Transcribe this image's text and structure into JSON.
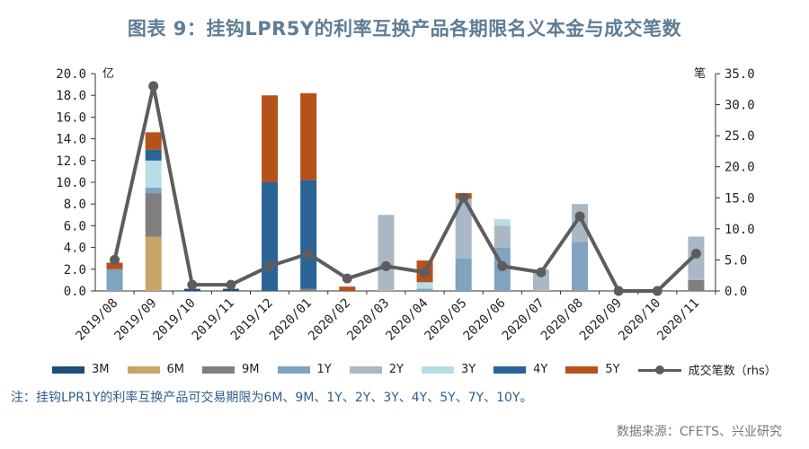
{
  "title": "图表 9：挂钩LPR5Y的利率互换产品各期限名义本金与成交笔数",
  "note": "注：挂钩LPR1Y的利率互换产品可交易期限为6M、9M、1Y、2Y、3Y、4Y、5Y、7Y、10Y。",
  "source": "数据来源：CFETS、兴业研究",
  "colors": {
    "3M": "#1f4e79",
    "6M": "#c9a46b",
    "9M": "#7f7f7f",
    "1Y": "#7fa3c0",
    "2Y": "#a9b8c4",
    "3Y": "#b7dde6",
    "4Y": "#2a6496",
    "5Y": "#b5521b",
    "line": "#5d5d5d"
  },
  "chart_data": {
    "type": "bar",
    "title": "图表 9：挂钩LPR5Y的利率互换产品各期限名义本金与成交笔数",
    "left_axis_unit": "亿",
    "right_axis_unit": "笔",
    "ylim": [
      0,
      20
    ],
    "y2lim": [
      0,
      35
    ],
    "yticks": [
      "0.0",
      "2.0",
      "4.0",
      "6.0",
      "8.0",
      "10.0",
      "12.0",
      "14.0",
      "16.0",
      "18.0",
      "20.0"
    ],
    "y2ticks": [
      "0.0",
      "5.0",
      "10.0",
      "15.0",
      "20.0",
      "25.0",
      "30.0",
      "35.0"
    ],
    "categories": [
      "2019/08",
      "2019/09",
      "2019/10",
      "2019/11",
      "2019/12",
      "2020/01",
      "2020/02",
      "2020/03",
      "2020/04",
      "2020/05",
      "2020/06",
      "2020/07",
      "2020/08",
      "2020/09",
      "2020/10",
      "2020/11"
    ],
    "stacked": true,
    "series": [
      {
        "name": "3M",
        "values": [
          0,
          0,
          0.2,
          0.2,
          0,
          0,
          0,
          0,
          0,
          0,
          0,
          0,
          0,
          0,
          0,
          0
        ]
      },
      {
        "name": "6M",
        "values": [
          0,
          5.0,
          0,
          0,
          0,
          0,
          0,
          0,
          0,
          0,
          0,
          0,
          0,
          0,
          0,
          0
        ]
      },
      {
        "name": "9M",
        "values": [
          0,
          4.0,
          0,
          0,
          0,
          0.2,
          0,
          0,
          0,
          0,
          0,
          0,
          0,
          0,
          0,
          1.0
        ]
      },
      {
        "name": "1Y",
        "values": [
          2.0,
          0.5,
          0,
          0,
          0,
          0,
          0,
          0,
          0.2,
          3.0,
          4.0,
          0,
          4.5,
          0,
          0,
          0
        ]
      },
      {
        "name": "2Y",
        "values": [
          0,
          0,
          0,
          0,
          0,
          0,
          0,
          7.0,
          0,
          5.5,
          2.0,
          2.0,
          3.5,
          0,
          0,
          4.0
        ]
      },
      {
        "name": "3Y",
        "values": [
          0,
          2.5,
          0,
          0,
          0,
          0,
          0,
          0,
          0.6,
          0,
          0.6,
          0,
          0,
          0,
          0,
          0
        ]
      },
      {
        "name": "4Y",
        "values": [
          0,
          1.0,
          0,
          0,
          10.0,
          10.0,
          0,
          0,
          0,
          0,
          0,
          0,
          0,
          0,
          0,
          0
        ]
      },
      {
        "name": "5Y",
        "values": [
          0.6,
          1.6,
          0,
          0,
          8.0,
          8.0,
          0.4,
          0,
          2.0,
          0.5,
          0,
          0,
          0,
          0,
          0,
          0
        ]
      }
    ],
    "line_series": {
      "name": "成交笔数（rhs）",
      "axis": "right",
      "values": [
        5,
        33,
        1,
        1,
        4,
        6,
        2,
        4,
        3,
        15,
        4,
        3,
        12,
        0,
        0,
        6
      ]
    },
    "legend": [
      "3M",
      "6M",
      "9M",
      "1Y",
      "2Y",
      "3Y",
      "4Y",
      "5Y",
      "成交笔数（rhs）"
    ],
    "legend_position": "bottom",
    "grid": false
  }
}
